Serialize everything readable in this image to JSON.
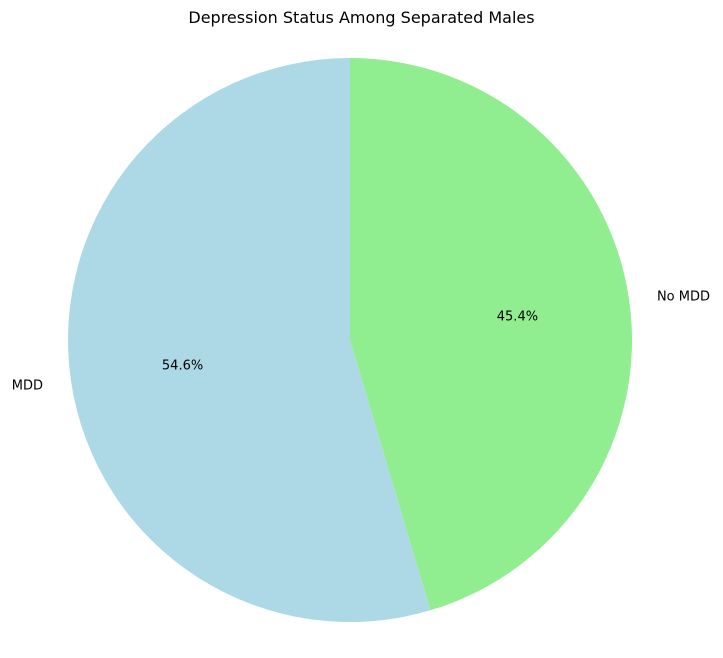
{
  "chart_data": {
    "type": "pie",
    "title": "Depression Status Among Separated Males",
    "slices": [
      {
        "label": "No MDD",
        "value": 45.4,
        "pct_label": "45.4%",
        "color": "#90ee90"
      },
      {
        "label": "MDD",
        "value": 54.6,
        "pct_label": "54.6%",
        "color": "#add8e6"
      }
    ],
    "start": "top",
    "direction": "clockwise",
    "legend": "none"
  }
}
